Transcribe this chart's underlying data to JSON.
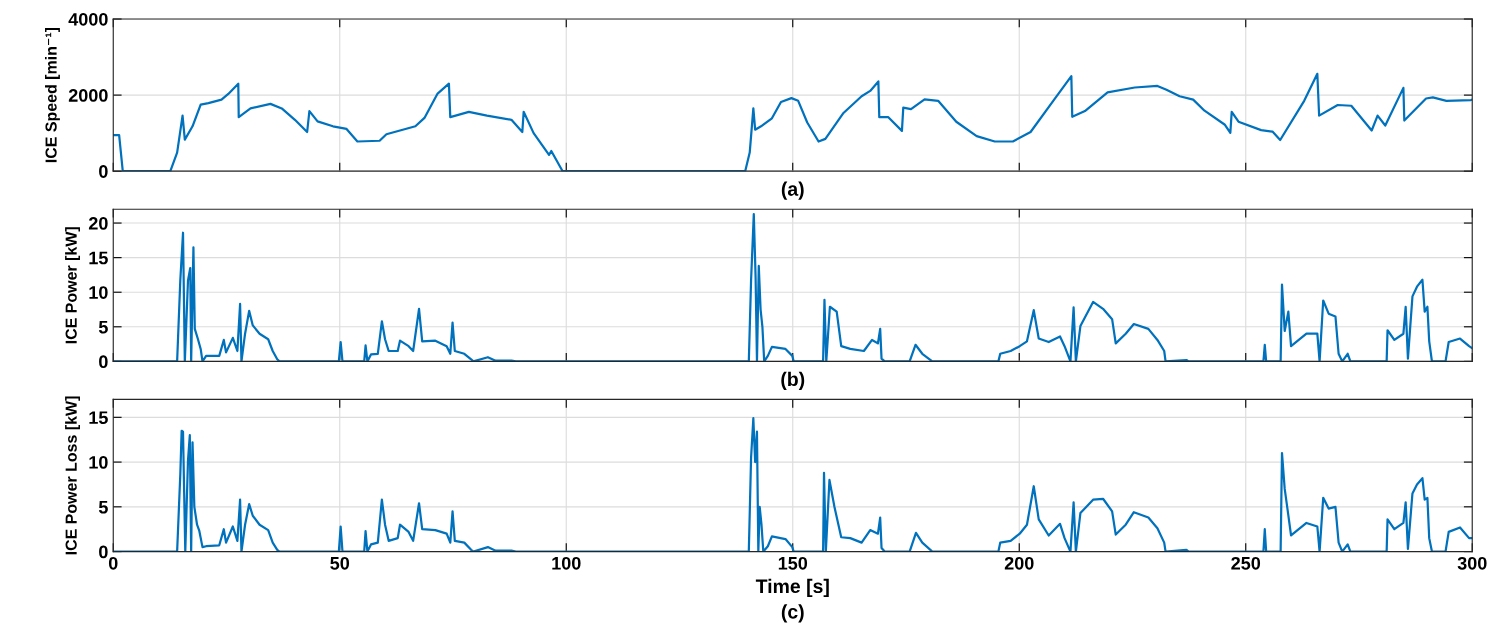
{
  "chart_data": [
    {
      "type": "line",
      "xlabel": "(a)",
      "ylabel": "ICE Speed [min⁻¹]",
      "xlim": [
        0,
        300
      ],
      "xticks": [
        0,
        50,
        100,
        150,
        200,
        250,
        300
      ],
      "ylim": [
        0,
        4000
      ],
      "yticks": [
        0,
        2000,
        4000
      ],
      "grid": true,
      "tick_labels": "y",
      "series": [
        {
          "color": "#0072bd",
          "x": [
            0,
            1.3,
            2.1,
            12.6,
            14.1,
            15.3,
            15.8,
            17.5,
            19.3,
            21,
            23.9,
            25.4,
            27.6,
            27.7,
            30.3,
            34.7,
            37.2,
            40.1,
            42.8,
            43.3,
            45.1,
            48.5,
            51.5,
            53.9,
            58.8,
            60.3,
            66.7,
            68.7,
            71.6,
            74.1,
            74.4,
            78.5,
            82.5,
            87.9,
            90.3,
            90.6,
            92.8,
            96.2,
            96.7,
            99.2,
            139.5,
            140.5,
            141.3,
            141.7,
            143,
            145.4,
            147.4,
            149.7,
            151.2,
            153.2,
            155.7,
            157.2,
            161.2,
            165.2,
            167.1,
            168.9,
            169.1,
            171.1,
            174.1,
            174.4,
            176.1,
            179.1,
            182.1,
            186.1,
            190.6,
            194.6,
            198.6,
            202.5,
            207.5,
            211.5,
            211.7,
            214.5,
            219.5,
            225.5,
            230.5,
            232.5,
            235.4,
            238.4,
            240.9,
            245.4,
            246.6,
            246.9,
            248.4,
            253.4,
            255.9,
            257.6,
            262.9,
            265.8,
            266.2,
            270.3,
            273.3,
            277.8,
            279.1,
            280.8,
            284.8,
            285,
            289.8,
            291.3,
            294.3,
            299.7,
            300
          ],
          "values": [
            950,
            950,
            0,
            0,
            490,
            1460,
            830,
            1180,
            1750,
            1790,
            1880,
            2030,
            2300,
            1420,
            1650,
            1770,
            1650,
            1350,
            1030,
            1580,
            1310,
            1180,
            1110,
            780,
            800,
            970,
            1180,
            1400,
            2040,
            2300,
            1420,
            1560,
            1460,
            1350,
            1030,
            1560,
            1000,
            430,
            530,
            0,
            0,
            490,
            1650,
            1090,
            1180,
            1390,
            1820,
            1920,
            1850,
            1280,
            780,
            850,
            1530,
            1970,
            2110,
            2360,
            1420,
            1420,
            1060,
            1670,
            1630,
            1890,
            1850,
            1300,
            920,
            780,
            780,
            1030,
            1850,
            2500,
            1430,
            1580,
            2070,
            2200,
            2240,
            2140,
            1970,
            1880,
            1590,
            1220,
            1010,
            1560,
            1300,
            1080,
            1040,
            820,
            1850,
            2560,
            1460,
            1740,
            1720,
            1070,
            1460,
            1200,
            2190,
            1330,
            1910,
            1940,
            1850,
            1870,
            1880
          ]
        }
      ]
    },
    {
      "type": "line",
      "xlabel": "(b)",
      "ylabel": "ICE Power [kW]",
      "xlim": [
        0,
        300
      ],
      "xticks": [
        0,
        50,
        100,
        150,
        200,
        250,
        300
      ],
      "ylim": [
        0,
        22
      ],
      "yticks": [
        0,
        5,
        10,
        15,
        20
      ],
      "grid": true,
      "tick_labels": "y",
      "series": [
        {
          "color": "#0072bd",
          "x": [
            0,
            14.1,
            14.8,
            15.4,
            15.8,
            16.5,
            17,
            17.2,
            17.7,
            18,
            18.7,
            19.3,
            19.7,
            20.5,
            23.4,
            24.4,
            24.9,
            26.4,
            27.4,
            28,
            28.3,
            29.1,
            30,
            30.8,
            32.3,
            34.2,
            35.2,
            36.2,
            36.7,
            49.8,
            50.2,
            50.6,
            55.4,
            55.7,
            56.1,
            56.9,
            58.4,
            59.3,
            60,
            60.8,
            62.8,
            63.3,
            65.2,
            66.2,
            67.5,
            68.2,
            71.1,
            73.6,
            74.4,
            74.9,
            75.4,
            77.5,
            79,
            79.5,
            82.7,
            84.4,
            87.9,
            88.9,
            140.3,
            140.8,
            141.4,
            141.8,
            142.1,
            142.5,
            142.9,
            143.3,
            143.7,
            144.5,
            145.4,
            148.4,
            149.9,
            150.2,
            156.7,
            157,
            157.4,
            158.2,
            159.7,
            160.7,
            162.7,
            165.7,
            167.5,
            168.8,
            169.3,
            169.6,
            170.3,
            175.8,
            177.1,
            178.6,
            180.8,
            195.4,
            195.8,
            198.1,
            200.1,
            201.7,
            203.2,
            204.3,
            206.5,
            209,
            210,
            211.3,
            212,
            212.5,
            213.5,
            216.3,
            218.5,
            220.5,
            221.3,
            223.5,
            225.3,
            228.5,
            230.5,
            232,
            232.3,
            236.9,
            237.4,
            253.9,
            254.2,
            254.5,
            257.7,
            258,
            258.6,
            259.4,
            260,
            263.4,
            265.8,
            266.3,
            267.1,
            268.3,
            269.8,
            270.5,
            271.3,
            272.5,
            273.1,
            281.1,
            281.3,
            282.8,
            284.8,
            285.3,
            285.8,
            286.8,
            287.8,
            289,
            289.5,
            290.1,
            290.5,
            291.1,
            294.1,
            294.8,
            297.3,
            299.3,
            300
          ],
          "values": [
            0,
            0,
            11.7,
            18.6,
            0,
            11.7,
            13.5,
            0,
            16.5,
            4.7,
            3.2,
            1.8,
            0,
            0.8,
            0.8,
            3.1,
            1.3,
            3.4,
            1.5,
            8.3,
            0,
            4.0,
            7.3,
            5.2,
            4.0,
            3.2,
            1.5,
            0.3,
            0,
            0,
            2.8,
            0,
            0,
            2.3,
            0,
            1.0,
            1.1,
            5.8,
            3.2,
            1.5,
            1.5,
            3.0,
            2.2,
            1.5,
            7.6,
            2.9,
            3.0,
            2.2,
            1.1,
            5.6,
            1.5,
            1.1,
            0.3,
            0,
            0.6,
            0.1,
            0.1,
            0,
            0,
            11.7,
            21.3,
            12.1,
            0,
            13.8,
            7.5,
            5.0,
            0,
            0.8,
            2.1,
            1.8,
            0.8,
            0,
            0,
            8.9,
            0,
            7.9,
            7.2,
            2.2,
            1.8,
            1.5,
            3.1,
            2.6,
            4.7,
            0.4,
            0,
            0,
            2.4,
            1.1,
            0,
            0,
            1.1,
            1.5,
            2.2,
            2.9,
            7.4,
            3.3,
            2.8,
            3.6,
            2.2,
            0,
            7.8,
            0,
            5.1,
            8.6,
            7.6,
            6.1,
            2.6,
            4.0,
            5.4,
            4.7,
            3.1,
            1.5,
            0,
            0.2,
            0,
            0,
            2.4,
            0,
            0,
            11.1,
            4.4,
            7.2,
            2.2,
            4.0,
            4.0,
            0,
            8.8,
            6.9,
            6.5,
            1.1,
            0,
            1.1,
            0,
            0,
            4.5,
            3.1,
            4.0,
            7.9,
            0.4,
            9.4,
            10.8,
            11.8,
            7.2,
            7.9,
            2.9,
            0,
            0,
            2.8,
            3.3,
            2.2,
            1.9
          ]
        }
      ]
    },
    {
      "type": "line",
      "xlabel": "Time [s]",
      "ylabel": "ICE Power Loss [kW]",
      "annotations": [
        "(c)"
      ],
      "xlim": [
        0,
        300
      ],
      "xticks": [
        0,
        50,
        100,
        150,
        200,
        250,
        300
      ],
      "ylim": [
        0,
        17
      ],
      "yticks": [
        0,
        5,
        10,
        15
      ],
      "grid": true,
      "series": [
        {
          "color": "#0072bd",
          "x": [
            0,
            14.1,
            14.8,
            15.1,
            15.4,
            15.6,
            15.9,
            16.5,
            16.9,
            17.2,
            17.5,
            17.9,
            18.5,
            19,
            19.7,
            20.5,
            23.4,
            24.4,
            24.9,
            26.4,
            27.4,
            28,
            28.3,
            29.1,
            30,
            30.8,
            32.3,
            34.2,
            35.2,
            36.2,
            36.7,
            49.8,
            50.2,
            50.6,
            55.4,
            55.7,
            56.1,
            56.9,
            58.4,
            59.3,
            60,
            60.8,
            62.8,
            63.3,
            65.2,
            66.2,
            67.5,
            68.2,
            71.1,
            73.6,
            74.4,
            74.9,
            75.4,
            77.5,
            79,
            79.5,
            82.7,
            84.4,
            87.9,
            88.9,
            140.3,
            140.8,
            141.3,
            141.7,
            142.1,
            142.4,
            142.7,
            143.1,
            143.5,
            144.5,
            145.4,
            148.4,
            149.9,
            150.2,
            156.7,
            156.9,
            157.3,
            158.1,
            159.2,
            160.7,
            162.7,
            165.2,
            167.1,
            168.8,
            169.3,
            169.6,
            170.3,
            175.8,
            177.2,
            178.6,
            180.8,
            195.4,
            195.8,
            198.1,
            200.1,
            201.7,
            203.2,
            204.3,
            206.5,
            209,
            210,
            211.3,
            212,
            212.5,
            213.5,
            216.3,
            218.5,
            220.5,
            221.3,
            223.5,
            225.3,
            228.5,
            230.5,
            232,
            232.3,
            236.9,
            237.4,
            253.9,
            254.2,
            254.5,
            257.7,
            258,
            258.6,
            259.2,
            260,
            263.4,
            265.8,
            266.3,
            267.1,
            268.3,
            269.8,
            270.5,
            271.3,
            272.5,
            273.1,
            281.1,
            281.3,
            282.8,
            284.8,
            285.3,
            285.8,
            286.8,
            287.8,
            289,
            289.5,
            290.1,
            290.5,
            291.1,
            294.1,
            294.8,
            297.3,
            299.3,
            300
          ],
          "values": [
            0,
            0,
            8.6,
            13.5,
            13.4,
            8.0,
            0,
            10.2,
            13.0,
            0,
            12.2,
            5.0,
            3.0,
            2.3,
            0.5,
            0.6,
            0.7,
            2.5,
            1.0,
            2.8,
            1.2,
            5.8,
            0,
            3.0,
            5.3,
            4.0,
            3.0,
            2.4,
            1.0,
            0.2,
            0,
            0,
            2.8,
            0,
            0,
            2.3,
            0,
            0.8,
            1.0,
            5.8,
            3.0,
            1.2,
            1.5,
            3.0,
            2.2,
            1.2,
            5.4,
            2.5,
            2.4,
            2.0,
            1.0,
            4.5,
            1.2,
            1.0,
            0.2,
            0,
            0.5,
            0.1,
            0.1,
            0,
            0,
            10.5,
            14.9,
            10.0,
            13.4,
            0,
            5.0,
            3.0,
            0,
            0.6,
            1.7,
            1.4,
            0.5,
            0,
            0,
            8.8,
            0,
            8.0,
            5.0,
            1.6,
            1.5,
            1.0,
            2.4,
            2.0,
            3.8,
            0.4,
            0,
            0,
            2.1,
            1.0,
            0,
            0,
            1.0,
            1.2,
            2.0,
            3.0,
            7.3,
            3.6,
            1.8,
            3.1,
            1.5,
            0,
            5.5,
            0,
            4.3,
            5.8,
            5.9,
            4.5,
            1.9,
            3.0,
            4.4,
            3.8,
            2.6,
            1.0,
            0,
            0.2,
            0,
            0,
            2.5,
            0,
            0,
            11.0,
            7.0,
            4.8,
            1.8,
            3.2,
            2.8,
            0,
            6.0,
            4.8,
            5.0,
            1.0,
            0,
            0.8,
            0,
            0,
            3.6,
            2.5,
            3.2,
            5.5,
            0.3,
            6.5,
            7.5,
            8.2,
            5.8,
            6.0,
            1.5,
            0,
            0,
            2.2,
            2.7,
            1.5,
            1.5
          ]
        }
      ]
    }
  ]
}
